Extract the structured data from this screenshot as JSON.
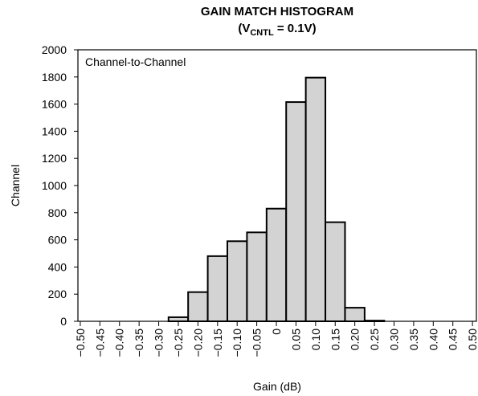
{
  "chart_data": {
    "type": "histogram",
    "title": "GAIN MATCH HISTOGRAM",
    "subtitle": [
      "(V",
      "CNTL",
      " = 0.1V)"
    ],
    "annotation": "Channel-to-Channel",
    "xlabel": "Gain (dB)",
    "ylabel": "Channel",
    "bins": [
      -0.275,
      -0.225,
      -0.175,
      -0.125,
      -0.075,
      -0.025,
      0.025,
      0.075,
      0.125,
      0.175,
      0.225,
      0.275
    ],
    "counts": [
      30,
      215,
      480,
      590,
      655,
      830,
      1615,
      1795,
      730,
      100,
      5
    ],
    "color": "#d3d3d3",
    "xlim": [
      -0.506,
      0.51
    ],
    "ylim": [
      0,
      2000
    ],
    "yticks": [
      0,
      200,
      400,
      600,
      800,
      1000,
      1200,
      1400,
      1600,
      1800,
      2000
    ],
    "xticks": [
      {
        "value": -0.5,
        "label": "−0.50"
      },
      {
        "value": -0.45,
        "label": "−0.45"
      },
      {
        "value": -0.4,
        "label": "−0.40"
      },
      {
        "value": -0.35,
        "label": "−0.35"
      },
      {
        "value": -0.3,
        "label": "−0.30"
      },
      {
        "value": -0.25,
        "label": "−0.25"
      },
      {
        "value": -0.2,
        "label": "−0.20"
      },
      {
        "value": -0.15,
        "label": "−0.15"
      },
      {
        "value": -0.1,
        "label": "−0.10"
      },
      {
        "value": -0.05,
        "label": "−0.05"
      },
      0,
      {
        "value": 0.05,
        "label": "0.05"
      },
      {
        "value": 0.1,
        "label": "0.10"
      },
      {
        "value": 0.15,
        "label": "0.15"
      },
      {
        "value": 0.2,
        "label": "0.20"
      },
      {
        "value": 0.25,
        "label": "0.25"
      },
      {
        "value": 0.3,
        "label": "0.30"
      },
      {
        "value": 0.35,
        "label": "0.35"
      },
      {
        "value": 0.4,
        "label": "0.40"
      },
      {
        "value": 0.45,
        "label": "0.45"
      },
      {
        "value": 0.5,
        "label": "0.50"
      }
    ],
    "grid": false
  }
}
